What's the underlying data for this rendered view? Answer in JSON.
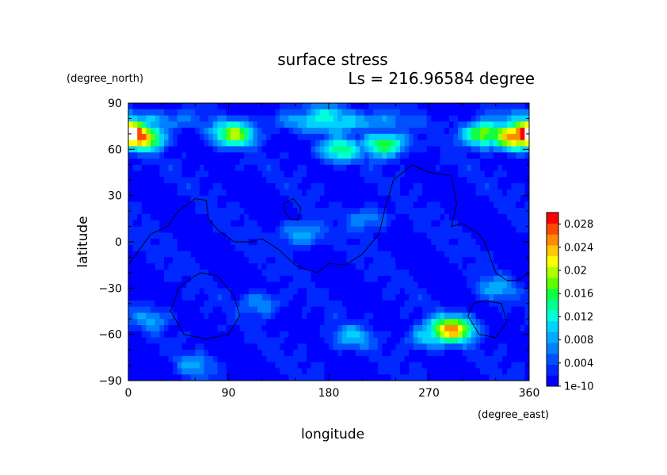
{
  "chart_data": {
    "type": "heatmap",
    "title": "surface stress",
    "subtitle": "Ls = 216.96584 degree",
    "xlabel": "longitude",
    "ylabel": "latitude",
    "xunit": "(degree_east)",
    "yunit": "(degree_north)",
    "xlim": [
      0,
      360
    ],
    "ylim": [
      -90,
      90
    ],
    "xticks": [
      "0",
      "90",
      "180",
      "270",
      "360"
    ],
    "yticks": [
      "90",
      "60",
      "30",
      "0",
      "−30",
      "−60",
      "−90"
    ],
    "colorbar": {
      "min": 0,
      "max": 0.03,
      "labels": [
        "0.028",
        "0.024",
        "0.02",
        "0.016",
        "0.012",
        "0.008",
        "0.004",
        "1e-10"
      ],
      "colors": [
        "#0000ff",
        "#0028ff",
        "#0050ff",
        "#0080ff",
        "#00aaff",
        "#00d2ff",
        "#00ffd8",
        "#00ff90",
        "#10ff40",
        "#60ff00",
        "#b0ff00",
        "#ffff00",
        "#ffc800",
        "#ff8c00",
        "#ff4800",
        "#ff0000"
      ]
    },
    "field_features": [
      {
        "lon": 0,
        "lat": 70,
        "value": 0.032
      },
      {
        "lon": 360,
        "lat": 70,
        "value": 0.032
      },
      {
        "lon": 10,
        "lat": 68,
        "value": 0.026
      },
      {
        "lon": 345,
        "lat": 68,
        "value": 0.026
      },
      {
        "lon": 320,
        "lat": 70,
        "value": 0.02
      },
      {
        "lon": 95,
        "lat": 70,
        "value": 0.018
      },
      {
        "lon": 230,
        "lat": 63,
        "value": 0.017
      },
      {
        "lon": 190,
        "lat": 60,
        "value": 0.014
      },
      {
        "lon": 290,
        "lat": -57,
        "value": 0.024
      },
      {
        "lon": 270,
        "lat": -62,
        "value": 0.012
      },
      {
        "lon": 155,
        "lat": 5,
        "value": 0.01
      },
      {
        "lon": 215,
        "lat": 15,
        "value": 0.008
      },
      {
        "lon": 120,
        "lat": -40,
        "value": 0.008
      },
      {
        "lon": 200,
        "lat": -62,
        "value": 0.009
      },
      {
        "lon": 330,
        "lat": -30,
        "value": 0.008
      },
      {
        "lon": 20,
        "lat": -50,
        "value": 0.007
      },
      {
        "lon": 180,
        "lat": 82,
        "value": 0.012
      },
      {
        "lon": 60,
        "lat": -80,
        "value": 0.007
      }
    ],
    "contour_lines": [
      [
        [
          0,
          -15
        ],
        [
          10,
          -5
        ],
        [
          20,
          5
        ],
        [
          35,
          10
        ],
        [
          45,
          20
        ],
        [
          60,
          28
        ],
        [
          70,
          27
        ],
        [
          72,
          15
        ],
        [
          80,
          8
        ],
        [
          95,
          0
        ],
        [
          110,
          0
        ],
        [
          120,
          2
        ],
        [
          135,
          -5
        ],
        [
          150,
          -15
        ],
        [
          160,
          -18
        ],
        [
          170,
          -20
        ],
        [
          180,
          -14
        ],
        [
          195,
          -15
        ],
        [
          210,
          -8
        ],
        [
          225,
          5
        ],
        [
          230,
          20
        ],
        [
          238,
          40
        ],
        [
          255,
          50
        ],
        [
          270,
          45
        ],
        [
          290,
          43
        ],
        [
          295,
          25
        ],
        [
          290,
          10
        ],
        [
          300,
          12
        ],
        [
          315,
          5
        ],
        [
          320,
          0
        ],
        [
          325,
          -10
        ],
        [
          330,
          -20
        ],
        [
          340,
          -25
        ],
        [
          350,
          -25
        ],
        [
          360,
          -20
        ]
      ],
      [
        [
          65,
          -20
        ],
        [
          80,
          -22
        ],
        [
          95,
          -35
        ],
        [
          100,
          -48
        ],
        [
          90,
          -60
        ],
        [
          70,
          -63
        ],
        [
          50,
          -60
        ],
        [
          38,
          -45
        ],
        [
          45,
          -30
        ],
        [
          60,
          -22
        ],
        [
          65,
          -20
        ]
      ],
      [
        [
          140,
          25
        ],
        [
          148,
          28
        ],
        [
          155,
          22
        ],
        [
          152,
          14
        ],
        [
          145,
          15
        ],
        [
          140,
          20
        ],
        [
          140,
          25
        ]
      ],
      [
        [
          320,
          -38
        ],
        [
          335,
          -40
        ],
        [
          340,
          -52
        ],
        [
          330,
          -62
        ],
        [
          315,
          -60
        ],
        [
          305,
          -48
        ],
        [
          310,
          -40
        ],
        [
          320,
          -38
        ]
      ]
    ]
  }
}
